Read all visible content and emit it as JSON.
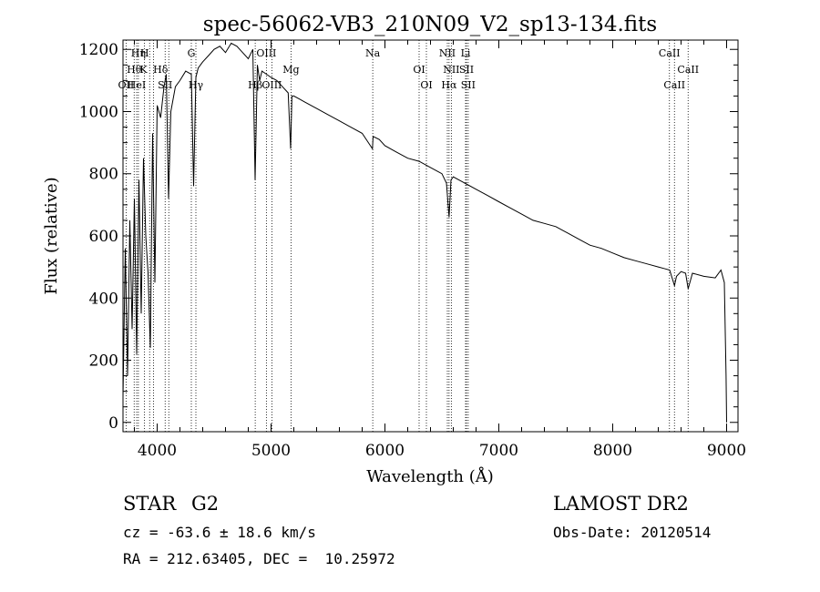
{
  "chart_data": {
    "type": "line",
    "title": "spec-56062-VB3_210N09_V2_sp13-134.fits",
    "xlabel": "Wavelength (Å)",
    "ylabel": "Flux (relative)",
    "xlim": [
      3700,
      9100
    ],
    "ylim": [
      -30,
      1230
    ],
    "xticks": [
      4000,
      5000,
      6000,
      7000,
      8000,
      9000
    ],
    "xtick_labels": [
      "4000",
      "5000",
      "6000",
      "7000",
      "8000",
      "9000"
    ],
    "yticks": [
      0,
      200,
      400,
      600,
      800,
      1000,
      1200
    ],
    "ytick_labels": [
      "0",
      "200",
      "400",
      "600",
      "800",
      "1000",
      "1200"
    ],
    "grid": false,
    "series": [
      {
        "x": [
          3700,
          3720,
          3740,
          3760,
          3780,
          3800,
          3820,
          3840,
          3860,
          3880,
          3900,
          3920,
          3940,
          3960,
          3980,
          4000,
          4030,
          4060,
          4080,
          4100,
          4120,
          4160,
          4200,
          4250,
          4300,
          4320,
          4340,
          4360,
          4400,
          4450,
          4500,
          4550,
          4600,
          4650,
          4700,
          4750,
          4800,
          4840,
          4860,
          4880,
          4900,
          4920,
          4960,
          5000,
          5050,
          5100,
          5150,
          5172,
          5183,
          5200,
          5250,
          5300,
          5400,
          5500,
          5600,
          5700,
          5800,
          5890,
          5896,
          5950,
          6000,
          6100,
          6200,
          6300,
          6400,
          6500,
          6540,
          6563,
          6580,
          6600,
          6700,
          6800,
          6900,
          7000,
          7100,
          7200,
          7300,
          7400,
          7500,
          7600,
          7700,
          7800,
          7900,
          8000,
          8100,
          8200,
          8300,
          8400,
          8450,
          8500,
          8542,
          8560,
          8600,
          8640,
          8662,
          8700,
          8800,
          8900,
          8950,
          8980,
          8995,
          9000
        ],
        "y": [
          80,
          560,
          150,
          650,
          300,
          720,
          220,
          780,
          350,
          850,
          600,
          480,
          240,
          930,
          450,
          1020,
          980,
          1080,
          1120,
          720,
          1000,
          1080,
          1100,
          1130,
          1120,
          760,
          1110,
          1140,
          1160,
          1180,
          1200,
          1210,
          1190,
          1220,
          1210,
          1190,
          1170,
          1200,
          780,
          1150,
          1100,
          1130,
          1120,
          1110,
          1100,
          1080,
          1060,
          880,
          1050,
          1050,
          1040,
          1030,
          1010,
          990,
          970,
          950,
          930,
          880,
          920,
          910,
          890,
          870,
          850,
          840,
          820,
          800,
          770,
          660,
          780,
          790,
          770,
          750,
          730,
          710,
          690,
          670,
          650,
          640,
          630,
          610,
          590,
          570,
          560,
          545,
          530,
          520,
          510,
          500,
          495,
          490,
          440,
          470,
          485,
          480,
          430,
          480,
          470,
          465,
          490,
          450,
          150,
          0
        ]
      }
    ],
    "annotations": [
      {
        "label": "Hη",
        "x": 3835,
        "row": 1
      },
      {
        "label": "H",
        "x": 3889,
        "row": 1
      },
      {
        "label": "Hθ",
        "x": 3798,
        "row": 2
      },
      {
        "label": "K",
        "x": 3880,
        "row": 2
      },
      {
        "label": "Hδ",
        "x": 4030,
        "row": 2
      },
      {
        "label": "OII",
        "x": 3727,
        "row": 3
      },
      {
        "label": "HeI",
        "x": 3820,
        "row": 3
      },
      {
        "label": "SII",
        "x": 4070,
        "row": 3
      },
      {
        "label": "G",
        "x": 4300,
        "row": 1
      },
      {
        "label": "Hγ",
        "x": 4340,
        "row": 3
      },
      {
        "label": "OIII",
        "x": 4959,
        "row": 1
      },
      {
        "label": "Hβ",
        "x": 4861,
        "row": 3
      },
      {
        "label": "OIII",
        "x": 5007,
        "row": 3
      },
      {
        "label": "Mg",
        "x": 5175,
        "row": 2
      },
      {
        "label": "Na",
        "x": 5893,
        "row": 1
      },
      {
        "label": "OI",
        "x": 6300,
        "row": 2
      },
      {
        "label": "OI",
        "x": 6364,
        "row": 3
      },
      {
        "label": "NII",
        "x": 6548,
        "row": 1
      },
      {
        "label": "NII",
        "x": 6583,
        "row": 2
      },
      {
        "label": "Hα",
        "x": 6563,
        "row": 3
      },
      {
        "label": "Li",
        "x": 6708,
        "row": 1
      },
      {
        "label": "SII",
        "x": 6716,
        "row": 2
      },
      {
        "label": "SII",
        "x": 6731,
        "row": 3
      },
      {
        "label": "CaII",
        "x": 8498,
        "row": 1
      },
      {
        "label": "CaII",
        "x": 8662,
        "row": 2
      },
      {
        "label": "CaII",
        "x": 8542,
        "row": 3
      }
    ],
    "line_markers": [
      3727,
      3798,
      3820,
      3835,
      3889,
      3934,
      3968,
      4070,
      4102,
      4300,
      4340,
      4861,
      4959,
      5007,
      5175,
      5893,
      6300,
      6364,
      6548,
      6563,
      6583,
      6708,
      6716,
      6731,
      8498,
      8542,
      8662
    ]
  },
  "info": {
    "object_type": "STAR",
    "subclass": "G2",
    "cz_text": "cz = -63.6 ± 18.6 km/s",
    "coords_text": "RA = 212.63405, DEC =  10.25972",
    "survey": "LAMOST DR2",
    "obs_date_text": "Obs-Date: 20120514"
  }
}
